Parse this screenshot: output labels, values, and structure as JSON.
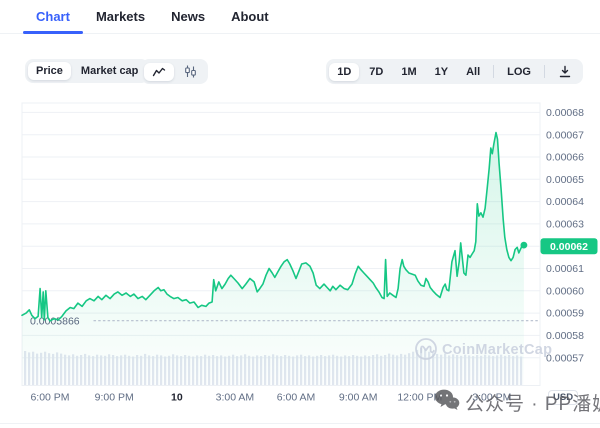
{
  "tabs": {
    "items": [
      {
        "label": "Chart"
      },
      {
        "label": "Markets"
      },
      {
        "label": "News"
      },
      {
        "label": "About"
      }
    ]
  },
  "toolbar": {
    "metric": {
      "options": [
        "Price",
        "Market cap"
      ],
      "selected": "Price"
    },
    "chart_type": {
      "options": [
        "line-chart",
        "candlestick-chart"
      ],
      "selected": "line-chart"
    },
    "ranges": {
      "options": [
        "1D",
        "7D",
        "1M",
        "1Y",
        "All"
      ],
      "selected": "1D"
    },
    "log_label": "LOG"
  },
  "chart_data": {
    "type": "area",
    "currency": "USD",
    "current_price": 0.00062,
    "current_price_label": "0.00062",
    "reference_price": 0.0005866,
    "reference_label": "0.0005866",
    "watermark": "CoinMarketCap",
    "accent_color": "#16c784",
    "y_axis": {
      "tick_labels": [
        "0.00068",
        "0.00067",
        "0.00066",
        "0.00065",
        "0.00064",
        "0.00063",
        "0.00062",
        "0.00061",
        "0.00060",
        "0.00059",
        "0.00058",
        "0.00057"
      ],
      "tick_values": [
        0.00068,
        0.00067,
        0.00066,
        0.00065,
        0.00064,
        0.00063,
        0.00062,
        0.00061,
        0.0006,
        0.00059,
        0.00058,
        0.00057
      ]
    },
    "x_axis": {
      "ticks": [
        {
          "label": "6:00 PM",
          "f": 0.054
        },
        {
          "label": "9:00 PM",
          "f": 0.178
        },
        {
          "label": "10",
          "f": 0.299,
          "bold": true
        },
        {
          "label": "3:00 AM",
          "f": 0.411
        },
        {
          "label": "6:00 AM",
          "f": 0.529
        },
        {
          "label": "9:00 AM",
          "f": 0.649
        },
        {
          "label": "12:00 PM",
          "f": 0.768
        },
        {
          "label": "3:00 PM",
          "f": 0.907
        }
      ]
    },
    "series": [
      {
        "name": "price",
        "points": [
          [
            0.0,
            0.000589
          ],
          [
            0.008,
            0.00059
          ],
          [
            0.014,
            0.0005915
          ],
          [
            0.019,
            0.000589
          ],
          [
            0.025,
            0.0005875
          ],
          [
            0.031,
            0.0005885
          ],
          [
            0.035,
            0.000601
          ],
          [
            0.038,
            0.000588
          ],
          [
            0.041,
            0.0005995
          ],
          [
            0.043,
            0.000587
          ],
          [
            0.046,
            0.0006
          ],
          [
            0.05,
            0.000588
          ],
          [
            0.054,
            0.0005865
          ],
          [
            0.062,
            0.0005875
          ],
          [
            0.07,
            0.000587
          ],
          [
            0.077,
            0.0005885
          ],
          [
            0.085,
            0.000591
          ],
          [
            0.093,
            0.0005925
          ],
          [
            0.1,
            0.000592
          ],
          [
            0.108,
            0.0005945
          ],
          [
            0.116,
            0.000593
          ],
          [
            0.124,
            0.0005955
          ],
          [
            0.131,
            0.0005965
          ],
          [
            0.139,
            0.0005955
          ],
          [
            0.147,
            0.0005975
          ],
          [
            0.154,
            0.000596
          ],
          [
            0.162,
            0.000598
          ],
          [
            0.17,
            0.0005965
          ],
          [
            0.178,
            0.0005985
          ],
          [
            0.185,
            0.0005995
          ],
          [
            0.193,
            0.000598
          ],
          [
            0.201,
            0.000599
          ],
          [
            0.209,
            0.0005975
          ],
          [
            0.216,
            0.0005985
          ],
          [
            0.224,
            0.0005965
          ],
          [
            0.232,
            0.0005975
          ],
          [
            0.239,
            0.000596
          ],
          [
            0.247,
            0.000598
          ],
          [
            0.255,
            0.0006
          ],
          [
            0.263,
            0.0006015
          ],
          [
            0.268,
            0.0006
          ],
          [
            0.274,
            0.0006005
          ],
          [
            0.28,
            0.0005985
          ],
          [
            0.286,
            0.0005975
          ],
          [
            0.293,
            0.0005965
          ],
          [
            0.301,
            0.000597
          ],
          [
            0.309,
            0.0005955
          ],
          [
            0.317,
            0.000596
          ],
          [
            0.324,
            0.0005945
          ],
          [
            0.332,
            0.000595
          ],
          [
            0.34,
            0.0005925
          ],
          [
            0.347,
            0.0005935
          ],
          [
            0.355,
            0.000593
          ],
          [
            0.361,
            0.0005945
          ],
          [
            0.367,
            0.000595
          ],
          [
            0.37,
            0.000605
          ],
          [
            0.374,
            0.0006
          ],
          [
            0.38,
            0.000604
          ],
          [
            0.386,
            0.000601
          ],
          [
            0.392,
            0.000603
          ],
          [
            0.398,
            0.0006055
          ],
          [
            0.403,
            0.000607
          ],
          [
            0.409,
            0.0006055
          ],
          [
            0.417,
            0.0006035
          ],
          [
            0.425,
            0.000601
          ],
          [
            0.432,
            0.000603
          ],
          [
            0.44,
            0.0006055
          ],
          [
            0.448,
            0.000604
          ],
          [
            0.454,
            0.0005995
          ],
          [
            0.459,
            0.000601
          ],
          [
            0.465,
            0.000603
          ],
          [
            0.471,
            0.000607
          ],
          [
            0.477,
            0.00061
          ],
          [
            0.483,
            0.000608
          ],
          [
            0.488,
            0.000606
          ],
          [
            0.494,
            0.0006085
          ],
          [
            0.5,
            0.000611
          ],
          [
            0.506,
            0.000613
          ],
          [
            0.512,
            0.000614
          ],
          [
            0.517,
            0.000612
          ],
          [
            0.523,
            0.000609
          ],
          [
            0.529,
            0.0006055
          ],
          [
            0.535,
            0.000609
          ],
          [
            0.54,
            0.000612
          ],
          [
            0.548,
            0.0006125
          ],
          [
            0.556,
            0.000611
          ],
          [
            0.562,
            0.000608
          ],
          [
            0.568,
            0.0006025
          ],
          [
            0.575,
            0.000601
          ],
          [
            0.583,
            0.000603
          ],
          [
            0.589,
            0.0006015
          ],
          [
            0.595,
            0.0006
          ],
          [
            0.6,
            0.000602
          ],
          [
            0.606,
            0.0006005
          ],
          [
            0.614,
            0.0006025
          ],
          [
            0.622,
            0.000601
          ],
          [
            0.629,
            0.0006005
          ],
          [
            0.637,
            0.000603
          ],
          [
            0.643,
            0.0006075
          ],
          [
            0.649,
            0.000611
          ],
          [
            0.654,
            0.0006095
          ],
          [
            0.66,
            0.000608
          ],
          [
            0.666,
            0.0006065
          ],
          [
            0.672,
            0.000605
          ],
          [
            0.678,
            0.0006035
          ],
          [
            0.683,
            0.0006015
          ],
          [
            0.689,
            0.0005995
          ],
          [
            0.695,
            0.000597
          ],
          [
            0.699,
            0.0005965
          ],
          [
            0.702,
            0.000614
          ],
          [
            0.705,
            0.0005975
          ],
          [
            0.71,
            0.000599
          ],
          [
            0.716,
            0.000598
          ],
          [
            0.722,
            0.000597
          ],
          [
            0.726,
            0.000601
          ],
          [
            0.73,
            0.00061
          ],
          [
            0.734,
            0.000614
          ],
          [
            0.737,
            0.000611
          ],
          [
            0.741,
            0.0006095
          ],
          [
            0.747,
            0.000608
          ],
          [
            0.753,
            0.0006075
          ],
          [
            0.759,
            0.000607
          ],
          [
            0.764,
            0.0006045
          ],
          [
            0.77,
            0.0006025
          ],
          [
            0.776,
            0.000602
          ],
          [
            0.78,
            0.0006055
          ],
          [
            0.784,
            0.000604
          ],
          [
            0.788,
            0.0006015
          ],
          [
            0.793,
            0.0006
          ],
          [
            0.799,
            0.0005985
          ],
          [
            0.807,
            0.000597
          ],
          [
            0.813,
            0.0006015
          ],
          [
            0.817,
            0.000603
          ],
          [
            0.82,
            0.0006005
          ],
          [
            0.824,
            0.0006
          ],
          [
            0.83,
            0.000613
          ],
          [
            0.836,
            0.000618
          ],
          [
            0.84,
            0.0006065
          ],
          [
            0.844,
            0.000613
          ],
          [
            0.847,
            0.0006215
          ],
          [
            0.853,
            0.000608
          ],
          [
            0.857,
            0.000607
          ],
          [
            0.861,
            0.000616
          ],
          [
            0.865,
            0.000615
          ],
          [
            0.869,
            0.0006165
          ],
          [
            0.873,
            0.000618
          ],
          [
            0.876,
            0.000622
          ],
          [
            0.879,
            0.000639
          ],
          [
            0.882,
            0.0006335
          ],
          [
            0.886,
            0.000635
          ],
          [
            0.89,
            0.000633
          ],
          [
            0.894,
            0.000637
          ],
          [
            0.898,
            0.000646
          ],
          [
            0.902,
            0.000655
          ],
          [
            0.905,
            0.000664
          ],
          [
            0.908,
            0.0006615
          ],
          [
            0.911,
            0.000666
          ],
          [
            0.915,
            0.000671
          ],
          [
            0.918,
            0.000668
          ],
          [
            0.921,
            0.000657
          ],
          [
            0.925,
            0.000645
          ],
          [
            0.929,
            0.000632
          ],
          [
            0.932,
            0.000624
          ],
          [
            0.936,
            0.0006185
          ],
          [
            0.94,
            0.000615
          ],
          [
            0.944,
            0.0006135
          ],
          [
            0.948,
            0.000615
          ],
          [
            0.952,
            0.0006185
          ],
          [
            0.956,
            0.0006195
          ],
          [
            0.959,
            0.000617
          ],
          [
            0.961,
            0.000618
          ],
          [
            0.965,
            0.00062
          ],
          [
            0.969,
            0.0006205
          ]
        ]
      }
    ],
    "volume_bars": [
      0.92,
      0.88,
      0.9,
      0.85,
      0.87,
      0.9,
      0.86,
      0.84,
      0.88,
      0.85,
      0.82,
      0.8,
      0.83,
      0.79,
      0.81,
      0.84,
      0.8,
      0.78,
      0.82,
      0.8,
      0.79,
      0.83,
      0.81,
      0.78,
      0.8,
      0.82,
      0.79,
      0.77,
      0.81,
      0.79,
      0.84,
      0.8,
      0.78,
      0.82,
      0.8,
      0.77,
      0.79,
      0.83,
      0.8,
      0.78,
      0.81,
      0.79,
      0.77,
      0.8,
      0.78,
      0.82,
      0.79,
      0.81,
      0.78,
      0.8,
      0.77,
      0.79,
      0.82,
      0.78,
      0.8,
      0.83,
      0.79,
      0.77,
      0.8,
      0.78,
      0.81,
      0.79,
      0.83,
      0.8,
      0.78,
      0.81,
      0.79,
      0.77,
      0.8,
      0.82,
      0.78,
      0.8,
      0.77,
      0.79,
      0.81,
      0.78,
      0.8,
      0.82,
      0.79,
      0.77,
      0.8,
      0.78,
      0.81,
      0.79,
      0.77,
      0.8,
      0.78,
      0.81,
      0.83,
      0.79,
      0.81,
      0.85,
      0.82,
      0.8,
      0.84,
      0.82,
      0.86,
      0.9,
      0.95,
      1.0,
      0.97,
      0.9,
      0.86,
      0.84,
      0.82,
      0.85,
      0.8,
      0.83,
      0.81,
      0.79,
      0.82,
      0.8,
      0.78,
      0.81,
      0.79,
      0.82,
      0.8,
      0.78,
      0.8,
      0.82,
      0.79,
      0.81,
      0.78,
      0.8,
      0.77
    ]
  },
  "overlay_watermark": {
    "text": "公众号 · PP潘妮"
  }
}
